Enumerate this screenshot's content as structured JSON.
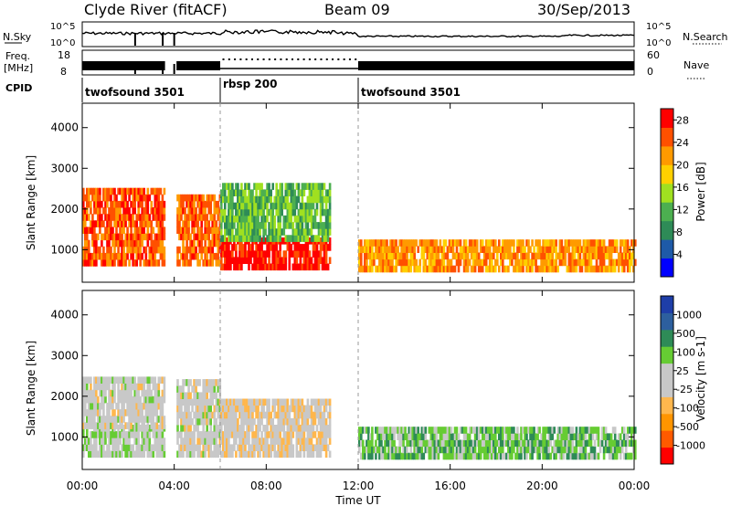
{
  "header": {
    "station": "Clyde River (fitACF)",
    "beam": "Beam 09",
    "date": "30/Sep/2013"
  },
  "strip_labels": {
    "nsky": "N.Sky",
    "nsky_ticks": [
      "10^5",
      "10^0"
    ],
    "nsearch": "N.Search",
    "nsearch_ticks": [
      "10^5",
      "10^0"
    ],
    "freq": "Freq.",
    "freq_unit": "[MHz]",
    "freq_ticks": [
      "18",
      "8"
    ],
    "nave": "Nave",
    "nave_ticks": [
      "60",
      "0"
    ],
    "cpid": "CPID"
  },
  "cpid_segments": [
    {
      "label": "twofsound 3501",
      "start": 0,
      "end": 6
    },
    {
      "label": "rbsp 200",
      "start": 6,
      "end": 12
    },
    {
      "label": "twofsound 3501",
      "start": 12,
      "end": 24
    }
  ],
  "colors": {
    "power": [
      "#0000ff",
      "#1e5aa8",
      "#2e8b57",
      "#4caf50",
      "#a0e020",
      "#ffd000",
      "#ff9a00",
      "#ff5000",
      "#ff0000"
    ],
    "velocity": [
      "#ff0000",
      "#ff5a00",
      "#ff9500",
      "#ffb74d",
      "#c8c8c8",
      "#c8c8c8",
      "#66cc33",
      "#2e8b57",
      "#2d5f9e",
      "#1e3ea8"
    ]
  },
  "chart_data": [
    {
      "type": "heatmap",
      "name": "Power",
      "xlabel": "",
      "ylabel": "Slant Range [km]",
      "xlim": [
        0,
        24
      ],
      "ylim": [
        200,
        4600
      ],
      "x_ticks": [
        "00:00",
        "04:00",
        "08:00",
        "12:00",
        "16:00",
        "20:00",
        "00:00"
      ],
      "y_ticks": [
        "1000",
        "2000",
        "3000",
        "4000"
      ],
      "colorbar_label": "Power [dB]",
      "colorbar_ticks": [
        "4",
        "8",
        "12",
        "16",
        "20",
        "24",
        "28"
      ],
      "colorbar_range": [
        0,
        30
      ],
      "regions": [
        {
          "t0": 0.0,
          "t1": 3.6,
          "r0": 600,
          "r1": 2400,
          "v": 25
        },
        {
          "t0": 4.1,
          "t1": 6.0,
          "r0": 600,
          "r1": 2300,
          "v": 24
        },
        {
          "t0": 6.0,
          "t1": 10.8,
          "r0": 500,
          "r1": 1200,
          "v": 28
        },
        {
          "t0": 6.0,
          "t1": 10.8,
          "r0": 1200,
          "r1": 2600,
          "v": 12
        },
        {
          "t0": 12.0,
          "t1": 24.0,
          "r0": 450,
          "r1": 1100,
          "v": 22
        }
      ]
    },
    {
      "type": "heatmap",
      "name": "Velocity",
      "xlabel": "Time UT",
      "ylabel": "Slant Range [km]",
      "xlim": [
        0,
        24
      ],
      "ylim": [
        200,
        4600
      ],
      "x_ticks": [
        "00:00",
        "04:00",
        "08:00",
        "12:00",
        "16:00",
        "20:00",
        "00:00"
      ],
      "y_ticks": [
        "1000",
        "2000",
        "3000",
        "4000"
      ],
      "colorbar_label": "Velocity [m s-1]",
      "colorbar_ticks": [
        "1000",
        "500",
        "100",
        "25",
        "-25",
        "-100",
        "-500",
        "-1000"
      ],
      "colorbar_range": [
        -1000,
        1000
      ],
      "regions": [
        {
          "t0": 0.0,
          "t1": 3.6,
          "r0": 500,
          "r1": 1200,
          "v": 100
        },
        {
          "t0": 0.0,
          "t1": 3.6,
          "r0": 1200,
          "r1": 2400,
          "v": 0
        },
        {
          "t0": 4.1,
          "t1": 6.0,
          "r0": 500,
          "r1": 2300,
          "v": 0
        },
        {
          "t0": 6.0,
          "t1": 10.8,
          "r0": 500,
          "r1": 1800,
          "v": -100
        },
        {
          "t0": 12.0,
          "t1": 24.0,
          "r0": 450,
          "r1": 1100,
          "v": 300
        }
      ]
    }
  ]
}
